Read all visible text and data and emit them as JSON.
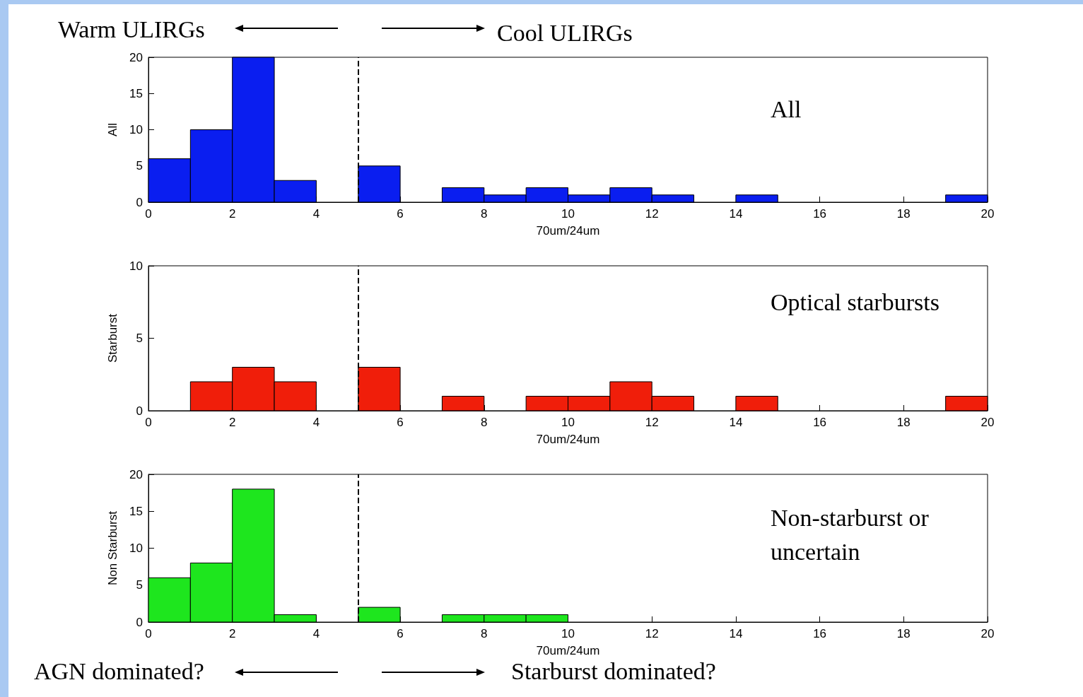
{
  "chart_data": [
    {
      "type": "histogram",
      "title": "All",
      "xlabel": "70um/24um",
      "ylabel": "All",
      "color": "#0a1ef0",
      "bins": [
        0,
        1,
        2,
        3,
        4,
        5,
        6,
        7,
        8,
        9,
        10,
        11,
        12,
        13,
        14,
        15,
        16,
        17,
        18,
        19,
        20
      ],
      "values": [
        6,
        10,
        20,
        3,
        0,
        5,
        0,
        2,
        1,
        2,
        1,
        2,
        1,
        0,
        1,
        0,
        0,
        0,
        0,
        1
      ],
      "xlim": [
        0,
        20
      ],
      "xticks": [
        0,
        2,
        4,
        6,
        8,
        10,
        12,
        14,
        16,
        18,
        20
      ],
      "ylim": [
        0,
        20
      ],
      "yticks": [
        0,
        5,
        10,
        15,
        20
      ],
      "grid": false,
      "ref_lines": [
        {
          "axis": "x",
          "value": 5,
          "line_style": "dashed",
          "color": "#000000"
        }
      ],
      "annotations": [
        "Warm ULIRGs",
        "Cool ULIRGs"
      ]
    },
    {
      "type": "histogram",
      "title": "Optical starbursts",
      "xlabel": "70um/24um",
      "ylabel": "Starburst",
      "color": "#f01e0a",
      "bins": [
        0,
        1,
        2,
        3,
        4,
        5,
        6,
        7,
        8,
        9,
        10,
        11,
        12,
        13,
        14,
        15,
        16,
        17,
        18,
        19,
        20
      ],
      "values": [
        0,
        2,
        3,
        2,
        0,
        3,
        0,
        1,
        0,
        1,
        1,
        2,
        1,
        0,
        1,
        0,
        0,
        0,
        0,
        1
      ],
      "xlim": [
        0,
        20
      ],
      "xticks": [
        0,
        2,
        4,
        6,
        8,
        10,
        12,
        14,
        16,
        18,
        20
      ],
      "ylim": [
        0,
        10
      ],
      "yticks": [
        0,
        5,
        10
      ],
      "grid": false,
      "ref_lines": [
        {
          "axis": "x",
          "value": 5,
          "line_style": "dashed",
          "color": "#000000"
        }
      ]
    },
    {
      "type": "histogram",
      "title": "Non-starburst or uncertain",
      "xlabel": "70um/24um",
      "ylabel": "Non Starburst",
      "color": "#1ee61e",
      "bins": [
        0,
        1,
        2,
        3,
        4,
        5,
        6,
        7,
        8,
        9,
        10,
        11,
        12,
        13,
        14,
        15,
        16,
        17,
        18,
        19,
        20
      ],
      "values": [
        6,
        8,
        18,
        1,
        0,
        2,
        0,
        1,
        1,
        1,
        0,
        0,
        0,
        0,
        0,
        0,
        0,
        0,
        0,
        0
      ],
      "xlim": [
        0,
        20
      ],
      "xticks": [
        0,
        2,
        4,
        6,
        8,
        10,
        12,
        14,
        16,
        18,
        20
      ],
      "ylim": [
        0,
        20
      ],
      "yticks": [
        0,
        5,
        10,
        15,
        20
      ],
      "grid": false,
      "ref_lines": [
        {
          "axis": "x",
          "value": 5,
          "line_style": "dashed",
          "color": "#000000"
        }
      ],
      "annotations": [
        "AGN dominated?",
        "Starburst dominated?"
      ]
    }
  ]
}
